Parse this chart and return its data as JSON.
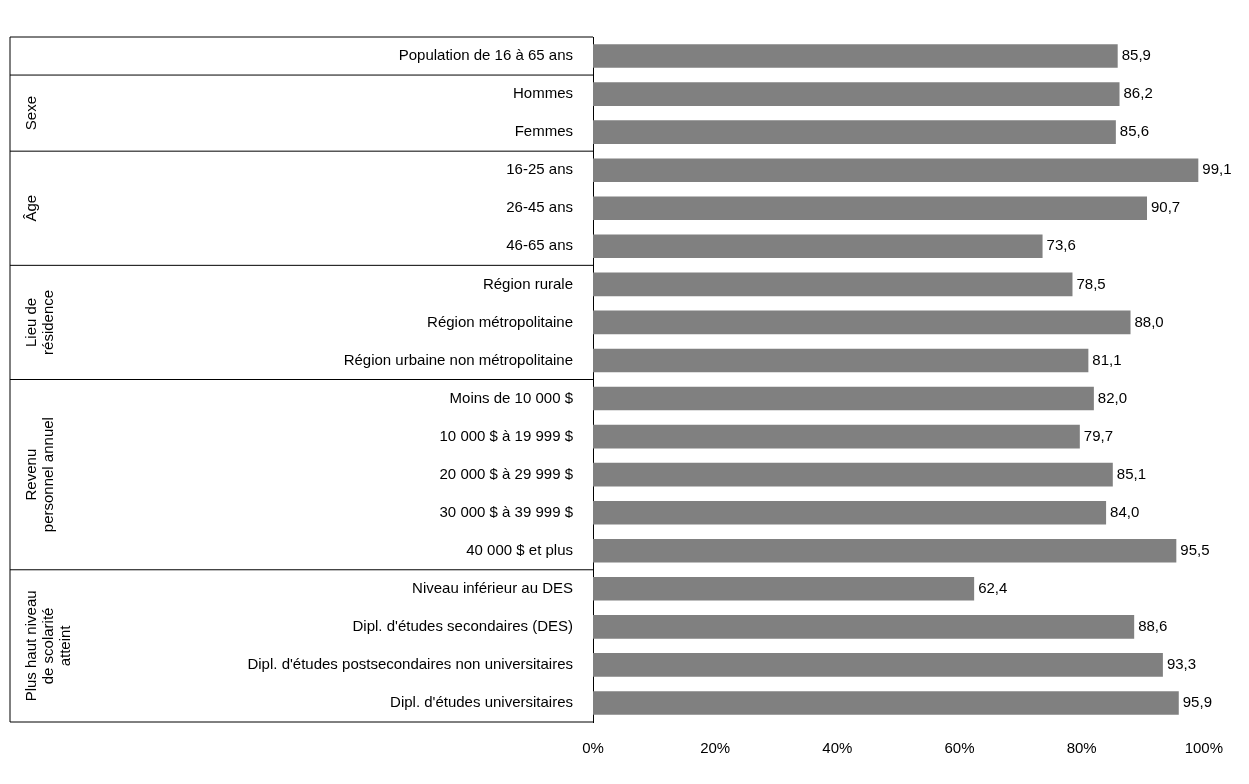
{
  "chart_data": {
    "type": "bar",
    "orientation": "horizontal",
    "categories": [
      "Population de 16 à 65 ans",
      "Hommes",
      "Femmes",
      "16-25 ans",
      "26-45 ans",
      "46-65 ans",
      "Région rurale",
      "Région métropolitaine",
      "Région urbaine non métropolitaine",
      "Moins de 10 000 $",
      "10 000 $ à 19 999 $",
      "20 000 $ à 29 999 $",
      "30 000 $ à 39 999 $",
      "40 000 $ et plus",
      "Niveau inférieur au DES",
      "Dipl. d'études secondaires (DES)",
      "Dipl. d'études postsecondaires non universitaires",
      "Dipl. d'études universitaires"
    ],
    "values": [
      85.9,
      86.2,
      85.6,
      99.1,
      90.7,
      73.6,
      78.5,
      88.0,
      81.1,
      82.0,
      79.7,
      85.1,
      84.0,
      95.5,
      62.4,
      88.6,
      93.3,
      95.9
    ],
    "color": "#808080",
    "xlim": [
      0,
      100
    ],
    "xticks": [
      {
        "value": 0,
        "label": "0%"
      },
      {
        "value": 20,
        "label": "20%"
      },
      {
        "value": 40,
        "label": "40%"
      },
      {
        "value": 60,
        "label": "60%"
      },
      {
        "value": 80,
        "label": "80%"
      },
      {
        "value": 100,
        "label": "100%"
      }
    ],
    "value_labels": [
      "85,9",
      "86,2",
      "85,6",
      "99,1",
      "90,7",
      "73,6",
      "78,5",
      "88,0",
      "81,1",
      "82,0",
      "79,7",
      "85,1",
      "84,0",
      "95,5",
      "62,4",
      "88,6",
      "93,3",
      "95,9"
    ],
    "grid": false,
    "legend": false,
    "annotations": [
      "Sexe",
      "Âge",
      "Lieu de résidence",
      "Revenu personnel annuel",
      "Plus haut niveau de scolarité atteint"
    ]
  }
}
